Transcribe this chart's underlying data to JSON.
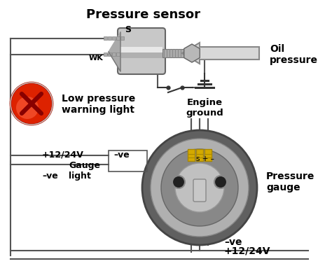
{
  "bg_color": "#ffffff",
  "labels": {
    "pressure_sensor": "Pressure sensor",
    "oil_pressure": "Oil\npressure",
    "engine_ground": "Engine\nground",
    "low_pressure": "Low pressure\nwarning light",
    "gauge_light": "Gauge\nlight",
    "pressure_gauge": "Pressure\ngauge",
    "plus12_top": "+12/24V",
    "minus_ve_top": "–ve",
    "minus_ve_bottom_left": "–ve",
    "minus_ve_bottom": "–ve",
    "plus12_bottom": "+12/24V",
    "wk_label": "WK",
    "s_label": "S",
    "s_plus_minus": "s + –"
  },
  "wire_color": "#555555",
  "text_color": "#000000"
}
